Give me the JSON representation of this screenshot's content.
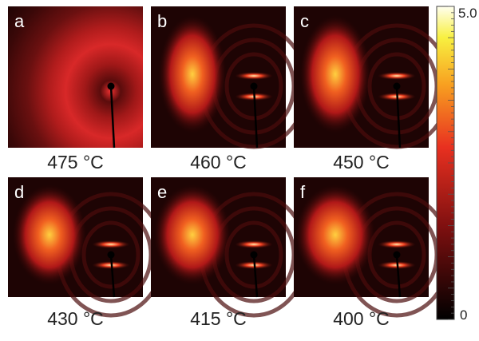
{
  "panels": [
    {
      "letter": "a",
      "temperature": "475 °C"
    },
    {
      "letter": "b",
      "temperature": "460 °C"
    },
    {
      "letter": "c",
      "temperature": "450 °C"
    },
    {
      "letter": "d",
      "temperature": "430 °C"
    },
    {
      "letter": "e",
      "temperature": "415 °C"
    },
    {
      "letter": "f",
      "temperature": "400 °C"
    }
  ],
  "colorbar": {
    "max_label": "5.0",
    "min_label": "0"
  }
}
